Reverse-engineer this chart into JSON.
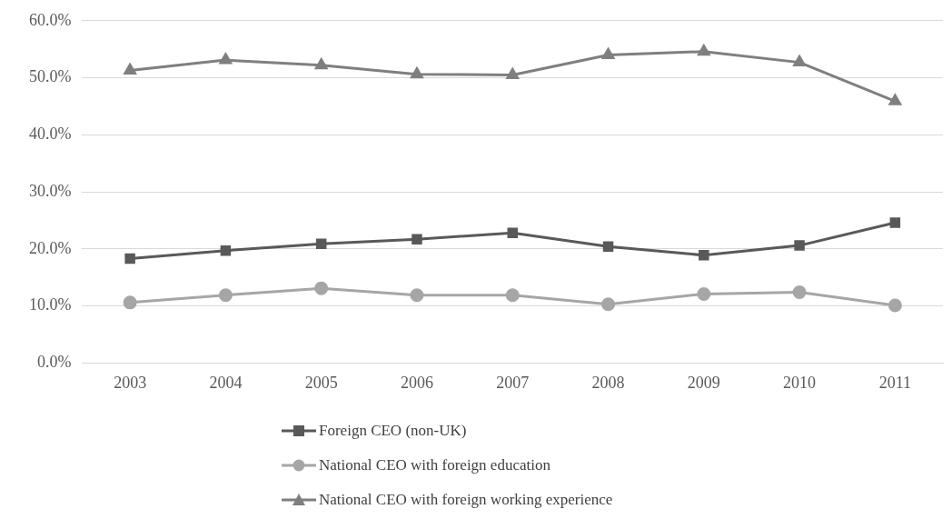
{
  "chart_data": {
    "type": "line",
    "categories": [
      "2003",
      "2004",
      "2005",
      "2006",
      "2007",
      "2008",
      "2009",
      "2010",
      "2011"
    ],
    "series": [
      {
        "name": "Foreign CEO (non-UK)",
        "color": "#595959",
        "marker": "square",
        "values": [
          18.3,
          19.7,
          20.9,
          21.7,
          22.8,
          20.4,
          18.9,
          20.6,
          24.6
        ]
      },
      {
        "name": "National CEO with foreign education",
        "color": "#a6a6a6",
        "marker": "circle",
        "values": [
          10.6,
          11.9,
          13.1,
          11.9,
          11.9,
          10.3,
          12.1,
          12.4,
          10.1
        ]
      },
      {
        "name": "National CEO with foreign working experience",
        "color": "#7f7f7f",
        "marker": "triangle",
        "values": [
          51.3,
          53.1,
          52.2,
          50.6,
          50.5,
          54.0,
          54.6,
          52.7,
          45.9
        ]
      }
    ],
    "ylim": [
      0,
      60
    ],
    "yticks": [
      {
        "value": 0,
        "label": "0.0%"
      },
      {
        "value": 10,
        "label": "10.0%"
      },
      {
        "value": 20,
        "label": "20.0%"
      },
      {
        "value": 30,
        "label": "30.0%"
      },
      {
        "value": 40,
        "label": "40.0%"
      },
      {
        "value": 50,
        "label": "50.0%"
      },
      {
        "value": 60,
        "label": "60.0%"
      }
    ],
    "grid": "y",
    "legend": "bottom"
  }
}
